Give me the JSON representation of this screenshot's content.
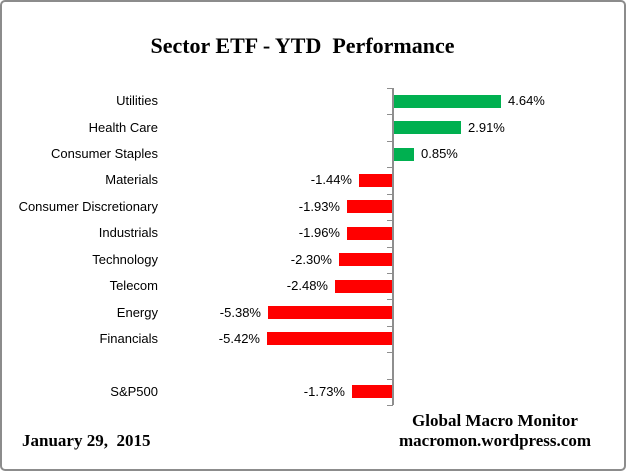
{
  "title": "Sector ETF - YTD  Performance",
  "footer": {
    "date": "January 29,  2015",
    "source_line1": "Global Macro Monitor",
    "source_line2": "macromon.wordpress.com"
  },
  "colors": {
    "positive_bar": "#00B050",
    "negative_bar": "#FF0000",
    "axis": "#8E8E8E",
    "border": "#8C8C8C",
    "text": "#000000"
  },
  "chart_data": {
    "type": "bar",
    "orientation": "horizontal",
    "title": "Sector ETF - YTD  Performance",
    "value_unit": "percent",
    "value_labels_position": "outside-end",
    "gridlines": false,
    "xlim": [
      -6.2,
      5.2
    ],
    "rows": [
      {
        "category": "Utilities",
        "value": 4.64,
        "label": "4.64%"
      },
      {
        "category": "Health Care",
        "value": 2.91,
        "label": "2.91%"
      },
      {
        "category": "Consumer Staples",
        "value": 0.85,
        "label": "0.85%"
      },
      {
        "category": "Materials",
        "value": -1.44,
        "label": "-1.44%"
      },
      {
        "category": "Consumer Discretionary",
        "value": -1.93,
        "label": "-1.93%"
      },
      {
        "category": "Industrials",
        "value": -1.96,
        "label": "-1.96%"
      },
      {
        "category": "Technology",
        "value": -2.3,
        "label": "-2.30%"
      },
      {
        "category": "Telecom",
        "value": -2.48,
        "label": "-2.48%"
      },
      {
        "category": "Energy",
        "value": -5.38,
        "label": "-5.38%"
      },
      {
        "category": "Financials",
        "value": -5.42,
        "label": "-5.42%"
      },
      {
        "category": "",
        "value": null,
        "label": "",
        "spacer": true
      },
      {
        "category": "S&P500",
        "value": -1.73,
        "label": "-1.73%"
      }
    ]
  }
}
